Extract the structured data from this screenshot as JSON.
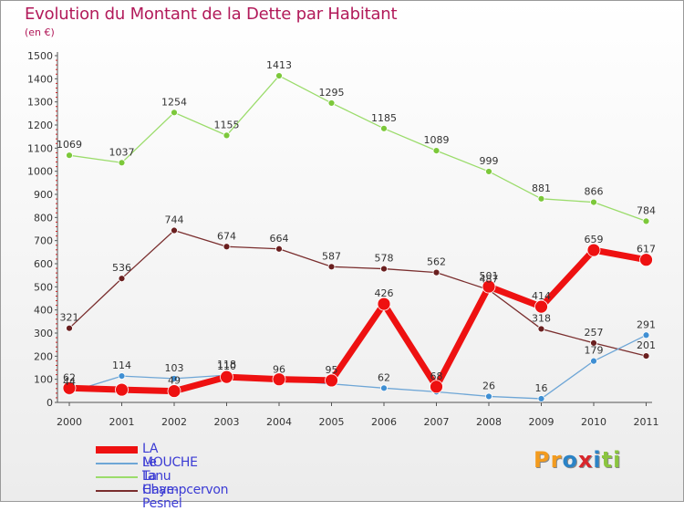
{
  "title": "Evolution du Montant de la Dette par Habitant",
  "subtitle": "(en €)",
  "logo": {
    "text": "Proxiti",
    "letters": [
      {
        "char": "P",
        "color": "#f39b1e"
      },
      {
        "char": "r",
        "color": "#f39b1e"
      },
      {
        "char": "o",
        "color": "#2b83c6"
      },
      {
        "char": "x",
        "color": "#d9262b"
      },
      {
        "char": "i",
        "color": "#2b83c6"
      },
      {
        "char": "t",
        "color": "#8bc53f"
      },
      {
        "char": "i",
        "color": "#8bc53f"
      }
    ]
  },
  "chart_data": {
    "type": "line",
    "title": "Evolution du Montant de la Dette par Habitant",
    "subtitle": "(en €)",
    "x": [
      "2000",
      "2001",
      "2002",
      "2003",
      "2004",
      "2005",
      "2006",
      "2007",
      "2008",
      "2009",
      "2010",
      "2011"
    ],
    "ylim": [
      0,
      1500
    ],
    "yticks": [
      0,
      100,
      200,
      300,
      400,
      500,
      600,
      700,
      800,
      900,
      1000,
      1100,
      1200,
      1300,
      1400,
      1500
    ],
    "grid": false,
    "legend_position": "bottom-left",
    "series": [
      {
        "name": "LA MOUCHE",
        "color": "#ee1111",
        "point_color": "#ee1111",
        "line_width": 7,
        "point_radius": 7,
        "values": [
          62,
          55,
          49,
          110,
          100,
          95,
          426,
          68,
          501,
          414,
          659,
          617
        ],
        "labels": [
          "62",
          "",
          "49",
          "110",
          "",
          "95",
          "426",
          "68",
          "501",
          "414",
          "659",
          "617"
        ]
      },
      {
        "name": "Le Tanu",
        "color": "#6ea6d6",
        "point_color": "#3f8fd3",
        "line_width": 1.3,
        "point_radius": 3.5,
        "values": [
          44,
          114,
          103,
          118,
          96,
          80,
          62,
          46,
          26,
          16,
          179,
          291
        ],
        "labels": [
          "44",
          "114",
          "103",
          "118",
          "96",
          "",
          "62",
          "",
          "26",
          "16",
          "179",
          "291"
        ]
      },
      {
        "name": "La Haye-Pesnel",
        "color": "#9bdc6b",
        "point_color": "#7cc83a",
        "line_width": 1.3,
        "point_radius": 3.5,
        "values": [
          1069,
          1037,
          1254,
          1155,
          1413,
          1295,
          1185,
          1089,
          999,
          881,
          866,
          784
        ],
        "labels": [
          "1069",
          "1037",
          "1254",
          "1155",
          "1413",
          "1295",
          "1185",
          "1089",
          "999",
          "881",
          "866",
          "784"
        ]
      },
      {
        "name": "Champcervon",
        "color": "#7a2e2e",
        "point_color": "#6a1f1f",
        "line_width": 1.3,
        "point_radius": 3.5,
        "values": [
          321,
          536,
          744,
          674,
          664,
          587,
          578,
          562,
          487,
          318,
          257,
          201
        ],
        "labels": [
          "321",
          "536",
          "744",
          "674",
          "664",
          "587",
          "578",
          "562",
          "487",
          "318",
          "257",
          "201"
        ]
      }
    ]
  }
}
